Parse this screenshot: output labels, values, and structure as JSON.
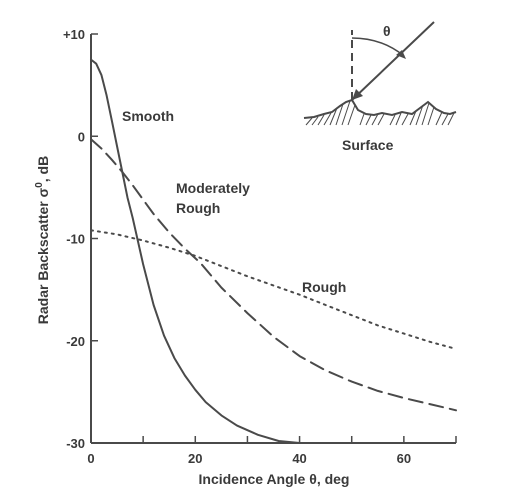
{
  "chart_data": {
    "type": "line",
    "xlabel_parts": [
      "Incidence Angle ",
      "θ",
      ", deg"
    ],
    "ylabel_parts": [
      "Radar Backscatter ",
      "σ",
      "0",
      ", dB"
    ],
    "xlim": [
      0,
      70
    ],
    "ylim": [
      -30,
      10
    ],
    "x_ticks": [
      0,
      20,
      40,
      60
    ],
    "x_minor_ticks": [
      10,
      30,
      50,
      70
    ],
    "y_ticks": [
      {
        "value": 10,
        "label": "+10"
      },
      {
        "value": 0,
        "label": "0"
      },
      {
        "value": -10,
        "label": "-10"
      },
      {
        "value": -20,
        "label": "-20"
      },
      {
        "value": -30,
        "label": "-30"
      }
    ],
    "series": [
      {
        "name": "Smooth",
        "style": "solid",
        "color": "#4a4a4a",
        "points": [
          [
            0,
            7.5
          ],
          [
            1,
            7.1
          ],
          [
            2,
            6.0
          ],
          [
            3,
            4.0
          ],
          [
            4,
            1.5
          ],
          [
            5,
            -1.0
          ],
          [
            6,
            -3.5
          ],
          [
            7,
            -6.0
          ],
          [
            8,
            -8.0
          ],
          [
            10,
            -12.5
          ],
          [
            12,
            -16.5
          ],
          [
            14,
            -19.5
          ],
          [
            16,
            -21.7
          ],
          [
            18,
            -23.4
          ],
          [
            20,
            -24.8
          ],
          [
            22,
            -26.0
          ],
          [
            25,
            -27.3
          ],
          [
            28,
            -28.3
          ],
          [
            32,
            -29.2
          ],
          [
            36,
            -29.8
          ],
          [
            40,
            -30.0
          ]
        ]
      },
      {
        "name": "Moderately Rough",
        "style": "dashed",
        "color": "#4a4a4a",
        "points": [
          [
            0,
            -0.3
          ],
          [
            2,
            -1.2
          ],
          [
            4,
            -2.3
          ],
          [
            6,
            -3.5
          ],
          [
            8,
            -4.8
          ],
          [
            10,
            -6.2
          ],
          [
            12,
            -7.6
          ],
          [
            15,
            -9.4
          ],
          [
            18,
            -11.0
          ],
          [
            21,
            -12.4
          ],
          [
            25,
            -14.8
          ],
          [
            30,
            -17.3
          ],
          [
            35,
            -19.6
          ],
          [
            40,
            -21.5
          ],
          [
            45,
            -22.9
          ],
          [
            50,
            -24.0
          ],
          [
            55,
            -24.9
          ],
          [
            60,
            -25.6
          ],
          [
            65,
            -26.2
          ],
          [
            70,
            -26.8
          ]
        ]
      },
      {
        "name": "Rough",
        "style": "dotted",
        "color": "#4a4a4a",
        "points": [
          [
            0,
            -9.2
          ],
          [
            5,
            -9.6
          ],
          [
            10,
            -10.2
          ],
          [
            15,
            -10.9
          ],
          [
            20,
            -11.7
          ],
          [
            25,
            -12.7
          ],
          [
            30,
            -13.7
          ],
          [
            35,
            -14.6
          ],
          [
            40,
            -15.5
          ],
          [
            45,
            -16.5
          ],
          [
            50,
            -17.5
          ],
          [
            55,
            -18.5
          ],
          [
            60,
            -19.3
          ],
          [
            65,
            -20.1
          ],
          [
            70,
            -20.8
          ]
        ]
      }
    ],
    "annotations": [
      {
        "text": "Smooth",
        "target": "Smooth"
      },
      {
        "lines": [
          "Moderately",
          "Rough"
        ],
        "target": "Moderately Rough"
      },
      {
        "text": "Rough",
        "target": "Rough"
      }
    ],
    "grid": false
  },
  "inset": {
    "angle_symbol": "θ",
    "surface_label": "Surface"
  }
}
